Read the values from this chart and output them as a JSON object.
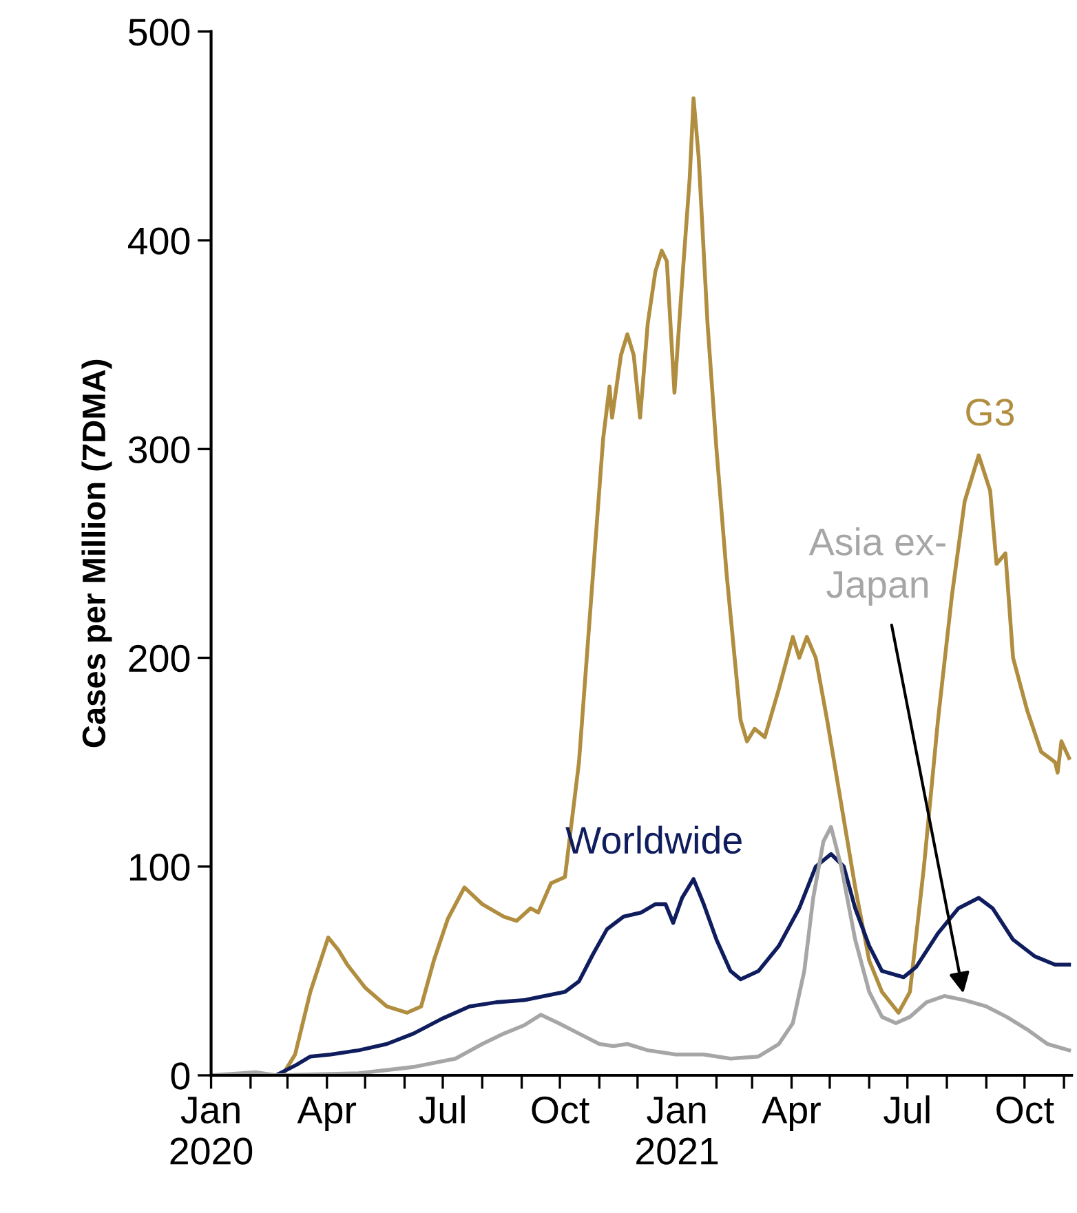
{
  "chart_data": {
    "type": "line",
    "ylabel": "Cases per Million (7DMA)",
    "xlim": [
      "2020-01-01",
      "2021-11-07"
    ],
    "xticks": [
      {
        "value": "2020-01-01",
        "label": "Jan\n2020"
      },
      {
        "value": "2020-02-01",
        "label": null
      },
      {
        "value": "2020-03-01",
        "label": null
      },
      {
        "value": "2020-04-01",
        "label": "Apr"
      },
      {
        "value": "2020-05-01",
        "label": null
      },
      {
        "value": "2020-06-01",
        "label": null
      },
      {
        "value": "2020-07-01",
        "label": "Jul"
      },
      {
        "value": "2020-08-01",
        "label": null
      },
      {
        "value": "2020-09-01",
        "label": null
      },
      {
        "value": "2020-10-01",
        "label": "Oct"
      },
      {
        "value": "2020-11-01",
        "label": null
      },
      {
        "value": "2020-12-01",
        "label": null
      },
      {
        "value": "2021-01-01",
        "label": "Jan\n2021"
      },
      {
        "value": "2021-02-01",
        "label": null
      },
      {
        "value": "2021-03-01",
        "label": null
      },
      {
        "value": "2021-04-01",
        "label": "Apr"
      },
      {
        "value": "2021-05-01",
        "label": null
      },
      {
        "value": "2021-06-01",
        "label": null
      },
      {
        "value": "2021-07-01",
        "label": "Jul"
      },
      {
        "value": "2021-08-01",
        "label": null
      },
      {
        "value": "2021-09-01",
        "label": null
      },
      {
        "value": "2021-10-01",
        "label": "Oct"
      },
      {
        "value": "2021-11-01",
        "label": null
      }
    ],
    "ylim": [
      0,
      500
    ],
    "yticks": [
      0,
      100,
      200,
      300,
      400,
      500
    ],
    "grid": false,
    "legend": false,
    "marker": "none",
    "line_style": "solid",
    "series": [
      {
        "name": "G3",
        "color": "#b08d3f",
        "x": [
          "2020-01-01",
          "2020-02-26",
          "2020-03-07",
          "2020-03-19",
          "2020-04-02",
          "2020-04-10",
          "2020-04-17",
          "2020-05-01",
          "2020-05-18",
          "2020-06-03",
          "2020-06-14",
          "2020-06-24",
          "2020-07-05",
          "2020-07-18",
          "2020-08-01",
          "2020-08-18",
          "2020-08-28",
          "2020-09-08",
          "2020-09-14",
          "2020-09-24",
          "2020-10-05",
          "2020-10-16",
          "2020-10-27",
          "2020-11-04",
          "2020-11-09",
          "2020-11-11",
          "2020-11-18",
          "2020-11-23",
          "2020-11-28",
          "2020-12-03",
          "2020-12-09",
          "2020-12-15",
          "2020-12-20",
          "2020-12-24",
          "2020-12-30",
          "2021-01-05",
          "2021-01-11",
          "2021-01-14",
          "2021-01-18",
          "2021-01-25",
          "2021-02-01",
          "2021-02-09",
          "2021-02-20",
          "2021-02-25",
          "2021-03-03",
          "2021-03-11",
          "2021-03-22",
          "2021-04-02",
          "2021-04-07",
          "2021-04-13",
          "2021-04-20",
          "2021-04-29",
          "2021-05-10",
          "2021-05-21",
          "2021-06-01",
          "2021-06-11",
          "2021-06-24",
          "2021-07-03",
          "2021-07-14",
          "2021-07-25",
          "2021-08-05",
          "2021-08-15",
          "2021-08-26",
          "2021-09-04",
          "2021-09-09",
          "2021-09-16",
          "2021-09-22",
          "2021-10-03",
          "2021-10-14",
          "2021-10-25",
          "2021-10-27",
          "2021-10-30",
          "2021-11-05"
        ],
        "values": [
          0,
          0,
          10,
          40,
          66,
          60,
          53,
          42,
          33,
          30,
          33,
          55,
          75,
          90,
          82,
          76,
          74,
          80,
          78,
          92,
          95,
          150,
          240,
          305,
          330,
          315,
          345,
          355,
          345,
          315,
          360,
          385,
          395,
          390,
          327,
          380,
          430,
          468,
          440,
          360,
          300,
          240,
          170,
          160,
          166,
          162,
          185,
          210,
          200,
          210,
          200,
          170,
          130,
          90,
          55,
          40,
          30,
          40,
          100,
          170,
          230,
          275,
          297,
          280,
          245,
          250,
          200,
          175,
          155,
          150,
          145,
          160,
          152
        ]
      },
      {
        "name": "Worldwide",
        "color": "#0f1d5e",
        "x": [
          "2020-01-01",
          "2020-02-21",
          "2020-03-08",
          "2020-03-19",
          "2020-04-04",
          "2020-04-26",
          "2020-05-18",
          "2020-06-08",
          "2020-06-30",
          "2020-07-22",
          "2020-08-12",
          "2020-09-03",
          "2020-09-19",
          "2020-10-05",
          "2020-10-16",
          "2020-10-27",
          "2020-11-07",
          "2020-11-20",
          "2020-12-04",
          "2020-12-15",
          "2020-12-23",
          "2020-12-29",
          "2021-01-05",
          "2021-01-14",
          "2021-01-22",
          "2021-02-01",
          "2021-02-12",
          "2021-02-20",
          "2021-03-06",
          "2021-03-22",
          "2021-04-07",
          "2021-04-20",
          "2021-05-02",
          "2021-05-12",
          "2021-05-21",
          "2021-06-01",
          "2021-06-11",
          "2021-06-28",
          "2021-07-08",
          "2021-07-25",
          "2021-08-10",
          "2021-08-26",
          "2021-09-06",
          "2021-09-22",
          "2021-10-09",
          "2021-10-25",
          "2021-11-05"
        ],
        "values": [
          0,
          0,
          5,
          9,
          10,
          12,
          15,
          20,
          27,
          33,
          35,
          36,
          38,
          40,
          45,
          58,
          70,
          76,
          78,
          82,
          82,
          73,
          85,
          94,
          82,
          65,
          50,
          46,
          50,
          62,
          80,
          100,
          106,
          100,
          80,
          62,
          50,
          47,
          52,
          68,
          80,
          85,
          80,
          65,
          57,
          53,
          53
        ]
      },
      {
        "name": "Asia ex-\nJapan",
        "color": "#a6a6a6",
        "x": [
          "2020-01-01",
          "2020-02-05",
          "2020-02-21",
          "2020-04-26",
          "2020-06-08",
          "2020-07-11",
          "2020-08-01",
          "2020-08-18",
          "2020-09-03",
          "2020-09-16",
          "2020-09-30",
          "2020-10-16",
          "2020-11-01",
          "2020-11-12",
          "2020-11-23",
          "2020-12-09",
          "2020-12-31",
          "2021-01-22",
          "2021-02-12",
          "2021-03-06",
          "2021-03-22",
          "2021-04-02",
          "2021-04-11",
          "2021-04-18",
          "2021-04-26",
          "2021-05-02",
          "2021-05-10",
          "2021-05-21",
          "2021-06-01",
          "2021-06-11",
          "2021-06-22",
          "2021-07-03",
          "2021-07-16",
          "2021-07-30",
          "2021-08-15",
          "2021-09-01",
          "2021-09-17",
          "2021-10-03",
          "2021-10-19",
          "2021-11-05"
        ],
        "values": [
          0,
          1.5,
          0,
          1,
          4,
          8,
          15,
          20,
          24,
          29,
          25,
          20,
          15,
          14,
          15,
          12,
          10,
          10,
          8,
          9,
          15,
          25,
          50,
          85,
          112,
          119,
          100,
          65,
          40,
          28,
          25,
          28,
          35,
          38,
          36,
          33,
          28,
          22,
          15,
          12
        ]
      }
    ]
  }
}
